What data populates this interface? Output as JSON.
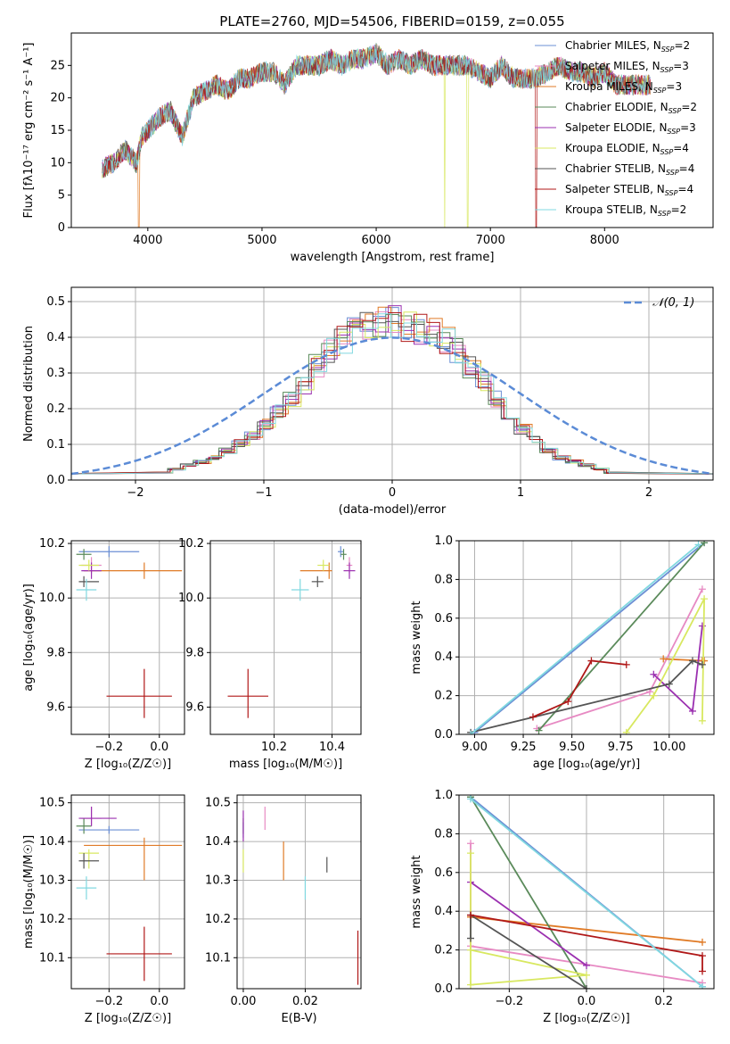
{
  "figure_title": "PLATE=2760, MJD=54506, FIBERID=0159, z=0.055",
  "colors": {
    "Chabrier MILES": "#6b8fd4",
    "Salpeter MILES": "#e78ac3",
    "Kroupa MILES": "#e07b27",
    "Chabrier ELODIE": "#5a8a5a",
    "Salpeter ELODIE": "#9b30b0",
    "Kroupa ELODIE": "#d8e860",
    "Chabrier STELIB": "#555555",
    "Salpeter STELIB": "#b01818",
    "Kroupa STELIB": "#80d8e0"
  },
  "chart_data": [
    {
      "id": "spectrum",
      "type": "line",
      "xlabel": "wavelength [Angstrom, rest frame]",
      "ylabel": "Flux [fλ10⁻¹⁷ erg cm⁻² s⁻¹ A⁻¹]",
      "xlim": [
        3330,
        8950
      ],
      "ylim": [
        0,
        30
      ],
      "xticks": [
        "4000",
        "5000",
        "6000",
        "7000",
        "8000"
      ],
      "yticks": [
        "0",
        "5",
        "10",
        "15",
        "20",
        "25"
      ],
      "legend_position": "top-right",
      "legend": [
        {
          "name": "Chabrier MILES",
          "sub": "N",
          "ssp": "SSP",
          "val": "=2"
        },
        {
          "name": "Salpeter MILES",
          "sub": "N",
          "ssp": "SSP",
          "val": "=3"
        },
        {
          "name": "Kroupa MILES",
          "sub": "N",
          "ssp": "SSP",
          "val": "=3"
        },
        {
          "name": "Chabrier ELODIE",
          "sub": "N",
          "ssp": "SSP",
          "val": "=2"
        },
        {
          "name": "Salpeter ELODIE",
          "sub": "N",
          "ssp": "SSP",
          "val": "=3"
        },
        {
          "name": "Kroupa ELODIE",
          "sub": "N",
          "ssp": "SSP",
          "val": "=4"
        },
        {
          "name": "Chabrier STELIB",
          "sub": "N",
          "ssp": "SSP",
          "val": "=4"
        },
        {
          "name": "Salpeter STELIB",
          "sub": "N",
          "ssp": "SSP",
          "val": "=4"
        },
        {
          "name": "Kroupa STELIB",
          "sub": "N",
          "ssp": "SSP",
          "val": "=2"
        }
      ],
      "observed_envelope": {
        "x": [
          3600,
          3700,
          3800,
          3900,
          3950,
          4000,
          4100,
          4200,
          4300,
          4400,
          4500,
          4600,
          4700,
          4800,
          4900,
          5000,
          5100,
          5200,
          5300,
          5400,
          5500,
          5600,
          5700,
          5800,
          5900,
          6000,
          6100,
          6200,
          6300,
          6400,
          6500,
          6600,
          6700,
          6800,
          6900,
          7000,
          7100,
          7200,
          7300,
          7400,
          7500,
          7600,
          7700,
          7800,
          7900,
          8000,
          8100,
          8200,
          8300,
          8400
        ],
        "y": [
          9,
          10,
          12,
          10,
          14,
          15,
          17,
          18,
          14,
          20,
          21,
          22,
          21,
          23,
          23,
          24,
          24,
          22,
          25,
          25,
          25,
          26,
          25,
          26,
          26,
          27,
          25,
          26,
          25,
          26,
          25,
          25,
          25,
          25,
          24,
          23,
          25,
          23,
          23,
          23,
          24,
          25,
          24,
          24,
          23,
          24,
          22,
          22,
          22,
          22
        ]
      },
      "model_dropouts": [
        {
          "model": "Kroupa MILES",
          "x": 3920
        },
        {
          "model": "Kroupa ELODIE",
          "x": 6600
        },
        {
          "model": "Kroupa ELODIE",
          "x": 6800
        },
        {
          "model": "Salpeter STELIB",
          "x": 7400
        }
      ]
    },
    {
      "id": "residuals",
      "type": "line",
      "xlabel": "(data-model)/error",
      "ylabel": "Normed distribution",
      "xlim": [
        -2.5,
        2.5
      ],
      "ylim": [
        0,
        0.54
      ],
      "xticks": [
        "−2",
        "−1",
        "0",
        "1",
        "2"
      ],
      "yticks": [
        "0.0",
        "0.1",
        "0.2",
        "0.3",
        "0.4",
        "0.5"
      ],
      "legend_position": "top-right",
      "gaussian_label": "𝒩(0, 1)",
      "gaussian_color": "#5b8bd6",
      "histogram_bin_width": 0.1,
      "histogram_profile": [
        0.02,
        0.03,
        0.04,
        0.05,
        0.06,
        0.08,
        0.1,
        0.12,
        0.15,
        0.19,
        0.22,
        0.26,
        0.31,
        0.35,
        0.38,
        0.41,
        0.42,
        0.43,
        0.43,
        0.42,
        0.41,
        0.4,
        0.38,
        0.35,
        0.31,
        0.27,
        0.22,
        0.18,
        0.14,
        0.11,
        0.08,
        0.06,
        0.05,
        0.04,
        0.03,
        0.02
      ]
    },
    {
      "id": "age-vs-Z",
      "type": "scatter",
      "xlabel": "Z [log₁₀(Z/Z☉)]",
      "ylabel": "age  [log₁₀(age/yr)]",
      "xlim": [
        -0.35,
        0.1
      ],
      "ylim": [
        9.5,
        10.21
      ],
      "xticks": [
        "−0.2",
        "0.0"
      ],
      "yticks": [
        "9.6",
        "9.8",
        "10.0",
        "10.2"
      ],
      "points": [
        {
          "model": "Chabrier MILES",
          "x": -0.2,
          "xerr": [
            0.12,
            0.12
          ],
          "y": 10.17,
          "yerr": [
            0.02,
            0.02
          ]
        },
        {
          "model": "Salpeter MILES",
          "x": -0.27,
          "xerr": [
            0.04,
            0.04
          ],
          "y": 10.12,
          "yerr": [
            0.03,
            0.03
          ]
        },
        {
          "model": "Kroupa MILES",
          "x": -0.06,
          "xerr": [
            0.24,
            0.15
          ],
          "y": 10.1,
          "yerr": [
            0.03,
            0.03
          ]
        },
        {
          "model": "Chabrier ELODIE",
          "x": -0.3,
          "xerr": [
            0.03,
            0.03
          ],
          "y": 10.16,
          "yerr": [
            0.02,
            0.02
          ]
        },
        {
          "model": "Salpeter ELODIE",
          "x": -0.27,
          "xerr": [
            0.04,
            0.04
          ],
          "y": 10.1,
          "yerr": [
            0.03,
            0.03
          ]
        },
        {
          "model": "Kroupa ELODIE",
          "x": -0.28,
          "xerr": [
            0.04,
            0.04
          ],
          "y": 10.12,
          "yerr": [
            0.02,
            0.02
          ]
        },
        {
          "model": "Chabrier STELIB",
          "x": -0.3,
          "xerr": [
            0.02,
            0.06
          ],
          "y": 10.06,
          "yerr": [
            0.02,
            0.02
          ]
        },
        {
          "model": "Salpeter STELIB",
          "x": -0.06,
          "xerr": [
            0.15,
            0.11
          ],
          "y": 9.64,
          "yerr": [
            0.08,
            0.1
          ]
        },
        {
          "model": "Kroupa STELIB",
          "x": -0.29,
          "xerr": [
            0.04,
            0.04
          ],
          "y": 10.03,
          "yerr": [
            0.04,
            0.04
          ]
        }
      ]
    },
    {
      "id": "age-vs-mass",
      "type": "scatter",
      "xlabel": "mass [log₁₀(M/M☉)]",
      "ylabel": "",
      "xlim": [
        9.98,
        10.5
      ],
      "ylim": [
        9.5,
        10.21
      ],
      "xticks": [
        "10.2",
        "10.4"
      ],
      "yticks": [
        "9.6",
        "9.8",
        "10.0",
        "10.2"
      ],
      "points": [
        {
          "model": "Chabrier MILES",
          "x": 10.43,
          "xerr": [
            0.01,
            0.01
          ],
          "y": 10.17,
          "yerr": [
            0.02,
            0.02
          ]
        },
        {
          "model": "Salpeter MILES",
          "x": 10.46,
          "xerr": [
            0.01,
            0.01
          ],
          "y": 10.12,
          "yerr": [
            0.03,
            0.03
          ]
        },
        {
          "model": "Kroupa MILES",
          "x": 10.39,
          "xerr": [
            0.1,
            0.01
          ],
          "y": 10.1,
          "yerr": [
            0.03,
            0.03
          ]
        },
        {
          "model": "Chabrier ELODIE",
          "x": 10.44,
          "xerr": [
            0.01,
            0.01
          ],
          "y": 10.16,
          "yerr": [
            0.02,
            0.02
          ]
        },
        {
          "model": "Salpeter ELODIE",
          "x": 10.46,
          "xerr": [
            0.02,
            0.02
          ],
          "y": 10.1,
          "yerr": [
            0.03,
            0.03
          ]
        },
        {
          "model": "Kroupa ELODIE",
          "x": 10.37,
          "xerr": [
            0.02,
            0.02
          ],
          "y": 10.12,
          "yerr": [
            0.02,
            0.02
          ]
        },
        {
          "model": "Chabrier STELIB",
          "x": 10.35,
          "xerr": [
            0.02,
            0.02
          ],
          "y": 10.06,
          "yerr": [
            0.02,
            0.02
          ]
        },
        {
          "model": "Salpeter STELIB",
          "x": 10.11,
          "xerr": [
            0.07,
            0.07
          ],
          "y": 9.64,
          "yerr": [
            0.08,
            0.1
          ]
        },
        {
          "model": "Kroupa STELIB",
          "x": 10.29,
          "xerr": [
            0.03,
            0.03
          ],
          "y": 10.03,
          "yerr": [
            0.04,
            0.04
          ]
        }
      ]
    },
    {
      "id": "mass-weight-vs-age",
      "type": "line",
      "xlabel": "age  [log₁₀(age/yr)]",
      "ylabel": "mass weight",
      "xlim": [
        8.92,
        10.23
      ],
      "ylim": [
        0,
        1
      ],
      "xticks": [
        "9.00",
        "9.25",
        "9.50",
        "9.75",
        "10.00"
      ],
      "yticks": [
        "0.0",
        "0.2",
        "0.4",
        "0.6",
        "0.8",
        "1.0"
      ],
      "series": [
        {
          "model": "Chabrier MILES",
          "x": [
            9.0,
            10.18
          ],
          "y": [
            0.01,
            0.99
          ]
        },
        {
          "model": "Salpeter MILES",
          "x": [
            9.32,
            9.9,
            10.17
          ],
          "y": [
            0.03,
            0.22,
            0.75
          ]
        },
        {
          "model": "Kroupa MILES",
          "x": [
            9.97,
            10.17,
            10.18
          ],
          "y": [
            0.39,
            0.38,
            0.38
          ]
        },
        {
          "model": "Chabrier ELODIE",
          "x": [
            9.33,
            10.18
          ],
          "y": [
            0.02,
            0.99
          ]
        },
        {
          "model": "Salpeter ELODIE",
          "x": [
            9.92,
            10.12,
            10.17
          ],
          "y": [
            0.31,
            0.12,
            0.56
          ]
        },
        {
          "model": "Kroupa ELODIE",
          "x": [
            9.78,
            9.92,
            10.18,
            10.17
          ],
          "y": [
            0.01,
            0.2,
            0.7,
            0.07
          ]
        },
        {
          "model": "Chabrier STELIB",
          "x": [
            8.98,
            10.0,
            10.12,
            10.17
          ],
          "y": [
            0.01,
            0.26,
            0.38,
            0.36
          ]
        },
        {
          "model": "Salpeter STELIB",
          "x": [
            9.3,
            9.48,
            9.6,
            9.78
          ],
          "y": [
            0.09,
            0.17,
            0.38,
            0.36
          ]
        },
        {
          "model": "Kroupa STELIB",
          "x": [
            8.98,
            10.15
          ],
          "y": [
            0.0,
            0.98
          ]
        }
      ]
    },
    {
      "id": "mass-vs-Z",
      "type": "scatter",
      "xlabel": "Z [log₁₀(Z/Z☉)]",
      "ylabel": "mass [log₁₀(M/M☉)]",
      "xlim": [
        -0.35,
        0.1
      ],
      "ylim": [
        10.02,
        10.52
      ],
      "xticks": [
        "−0.2",
        "0.0"
      ],
      "yticks": [
        "10.1",
        "10.2",
        "10.3",
        "10.4",
        "10.5"
      ],
      "points": [
        {
          "model": "Chabrier MILES",
          "x": -0.2,
          "xerr": [
            0.12,
            0.12
          ],
          "y": 10.43,
          "yerr": [
            0.01,
            0.01
          ]
        },
        {
          "model": "Salpeter MILES",
          "x": -0.27,
          "xerr": [
            0.04,
            0.04
          ],
          "y": 10.46,
          "yerr": [
            0.02,
            0.03
          ]
        },
        {
          "model": "Kroupa MILES",
          "x": -0.06,
          "xerr": [
            0.24,
            0.15
          ],
          "y": 10.39,
          "yerr": [
            0.09,
            0.02
          ]
        },
        {
          "model": "Chabrier ELODIE",
          "x": -0.3,
          "xerr": [
            0.03,
            0.03
          ],
          "y": 10.44,
          "yerr": [
            0.02,
            0.02
          ]
        },
        {
          "model": "Salpeter ELODIE",
          "x": -0.27,
          "xerr": [
            0.05,
            0.1
          ],
          "y": 10.46,
          "yerr": [
            0.02,
            0.03
          ]
        },
        {
          "model": "Kroupa ELODIE",
          "x": -0.28,
          "xerr": [
            0.04,
            0.04
          ],
          "y": 10.37,
          "yerr": [
            0.04,
            0.01
          ]
        },
        {
          "model": "Chabrier STELIB",
          "x": -0.3,
          "xerr": [
            0.02,
            0.06
          ],
          "y": 10.35,
          "yerr": [
            0.02,
            0.02
          ]
        },
        {
          "model": "Salpeter STELIB",
          "x": -0.06,
          "xerr": [
            0.15,
            0.11
          ],
          "y": 10.11,
          "yerr": [
            0.07,
            0.07
          ]
        },
        {
          "model": "Kroupa STELIB",
          "x": -0.29,
          "xerr": [
            0.04,
            0.04
          ],
          "y": 10.28,
          "yerr": [
            0.03,
            0.03
          ]
        }
      ]
    },
    {
      "id": "mass-vs-ebv",
      "type": "scatter",
      "xlabel": "E(B-V)",
      "ylabel": "",
      "xlim": [
        -0.002,
        0.038
      ],
      "ylim": [
        10.02,
        10.52
      ],
      "xticks": [
        "0.00",
        "0.02"
      ],
      "yticks": [
        "10.1",
        "10.2",
        "10.3",
        "10.4",
        "10.5"
      ],
      "points": [
        {
          "model": "Chabrier MILES",
          "x": 0.0,
          "y": 10.43,
          "yerr": [
            0.02,
            0.02
          ]
        },
        {
          "model": "Salpeter MILES",
          "x": 0.007,
          "y": 10.46,
          "yerr": [
            0.03,
            0.03
          ]
        },
        {
          "model": "Kroupa MILES",
          "x": 0.013,
          "y": 10.35,
          "yerr": [
            0.05,
            0.05
          ]
        },
        {
          "model": "Chabrier ELODIE",
          "x": 0.0,
          "y": 10.44,
          "yerr": [
            0.02,
            0.02
          ]
        },
        {
          "model": "Salpeter ELODIE",
          "x": 0.0,
          "y": 10.44,
          "yerr": [
            0.04,
            0.04
          ]
        },
        {
          "model": "Kroupa ELODIE",
          "x": 0.0,
          "y": 10.35,
          "yerr": [
            0.03,
            0.03
          ]
        },
        {
          "model": "Chabrier STELIB",
          "x": 0.027,
          "y": 10.34,
          "yerr": [
            0.02,
            0.02
          ]
        },
        {
          "model": "Salpeter STELIB",
          "x": 0.037,
          "y": 10.1,
          "yerr": [
            0.07,
            0.07
          ]
        },
        {
          "model": "Kroupa STELIB",
          "x": 0.02,
          "y": 10.28,
          "yerr": [
            0.03,
            0.03
          ]
        }
      ]
    },
    {
      "id": "mass-weight-vs-Z",
      "type": "line",
      "xlabel": "Z [log₁₀(Z/Z☉)]",
      "ylabel": "mass weight",
      "xlim": [
        -0.33,
        0.33
      ],
      "ylim": [
        0,
        1
      ],
      "xticks": [
        "−0.2",
        "0.0",
        "0.2"
      ],
      "yticks": [
        "0.0",
        "0.2",
        "0.4",
        "0.6",
        "0.8",
        "1.0"
      ],
      "series": [
        {
          "model": "Chabrier MILES",
          "x": [
            -0.3,
            0.3
          ],
          "y": [
            0.99,
            0.01
          ]
        },
        {
          "model": "Salpeter MILES",
          "x": [
            -0.3,
            -0.3,
            0.3
          ],
          "y": [
            0.75,
            0.22,
            0.03
          ]
        },
        {
          "model": "Kroupa MILES",
          "x": [
            -0.3,
            0.3
          ],
          "y": [
            0.37,
            0.24
          ]
        },
        {
          "model": "Chabrier ELODIE",
          "x": [
            -0.3,
            0.0
          ],
          "y": [
            0.99,
            0.0
          ]
        },
        {
          "model": "Salpeter ELODIE",
          "x": [
            -0.3,
            0.0
          ],
          "y": [
            0.55,
            0.12
          ]
        },
        {
          "model": "Kroupa ELODIE",
          "x": [
            -0.3,
            -0.3,
            0.0,
            -0.3
          ],
          "y": [
            0.7,
            0.02,
            0.07,
            0.2
          ]
        },
        {
          "model": "Chabrier STELIB",
          "x": [
            -0.3,
            -0.3,
            0.0
          ],
          "y": [
            0.26,
            0.38,
            0.0
          ]
        },
        {
          "model": "Salpeter STELIB",
          "x": [
            -0.3,
            0.3,
            0.3
          ],
          "y": [
            0.38,
            0.17,
            0.09
          ]
        },
        {
          "model": "Kroupa STELIB",
          "x": [
            -0.3,
            0.3
          ],
          "y": [
            0.98,
            0.01
          ]
        }
      ]
    }
  ]
}
